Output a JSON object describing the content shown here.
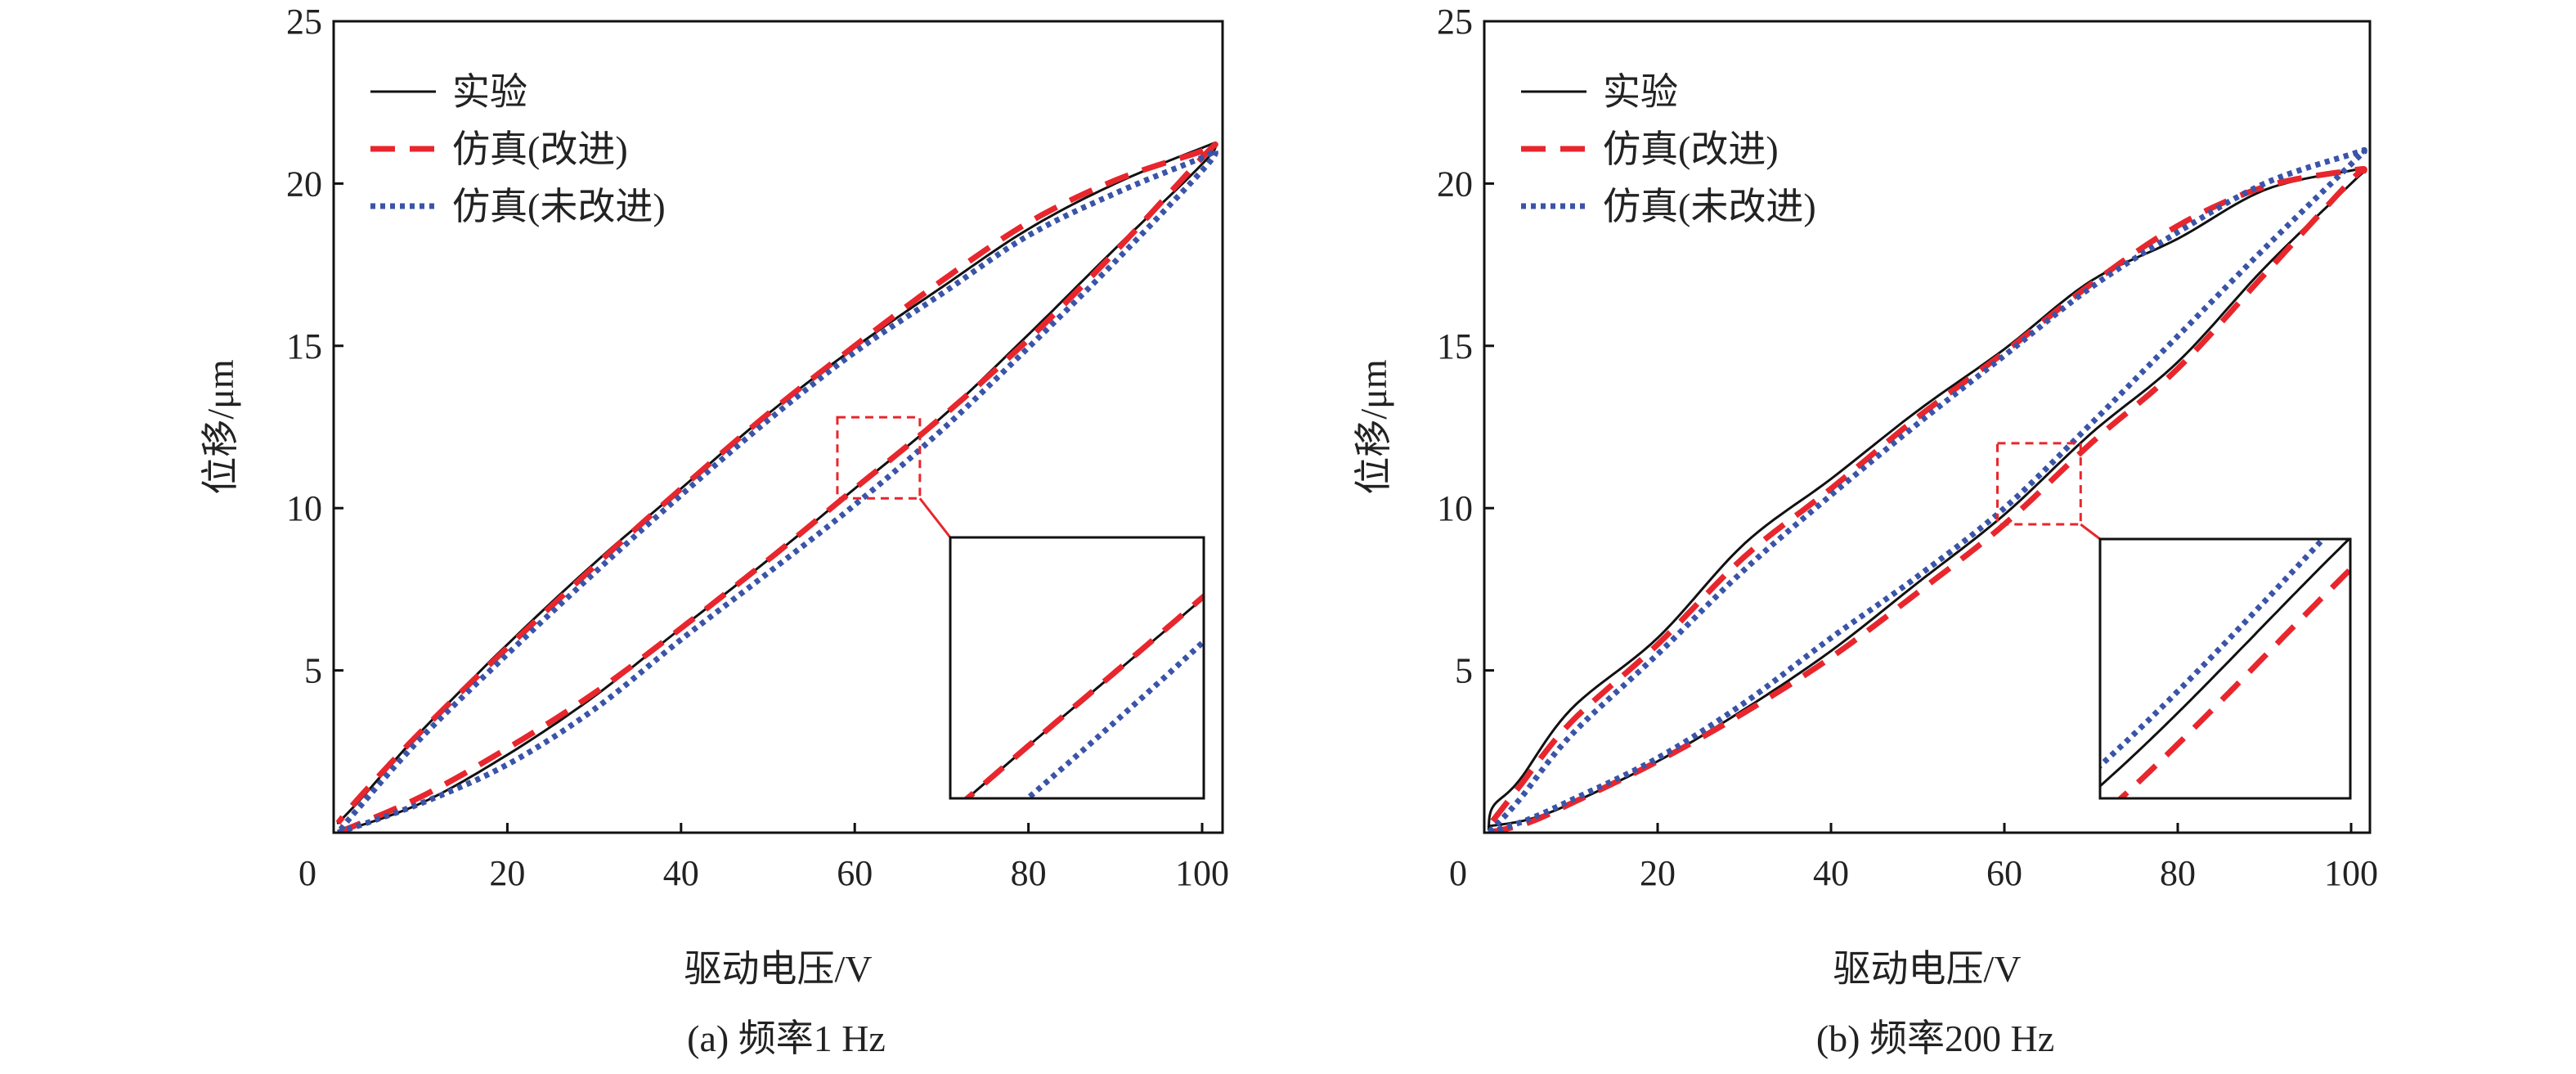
{
  "chart_data": [
    {
      "type": "line",
      "caption": "(a) 频率1 Hz",
      "xlabel": "驱动电压/V",
      "ylabel": "位移/μm",
      "xlim": [
        0,
        102.5
      ],
      "ylim": [
        0,
        25
      ],
      "xticks": [
        0,
        20,
        40,
        60,
        80,
        100
      ],
      "yticks": [
        5,
        10,
        15,
        20,
        25
      ],
      "xtick_labels": [
        "0",
        "20",
        "40",
        "60",
        "80",
        "100"
      ],
      "ytick_labels": [
        "5",
        "10",
        "15",
        "20",
        "25"
      ],
      "grid": false,
      "legend_position": "top-left",
      "inset": {
        "xrange": [
          58,
          67.5
        ],
        "yrange": [
          10.3,
          12.8
        ],
        "position": "bottom-right"
      },
      "series": [
        {
          "name": "实验",
          "style": "solid",
          "color": "#111111",
          "x": [
            0.5,
            10,
            20,
            30,
            40,
            50,
            60,
            70,
            80,
            90,
            100,
            101.5,
            100,
            90,
            80,
            70,
            60,
            50,
            40,
            30,
            20,
            10,
            3,
            0.5
          ],
          "y": [
            0,
            0.9,
            2.4,
            4.2,
            6.3,
            8.4,
            10.6,
            12.8,
            15.35,
            18.0,
            20.6,
            21.2,
            21.1,
            20.0,
            18.6,
            16.8,
            14.95,
            12.9,
            10.6,
            8.3,
            5.8,
            3.1,
            1.0,
            0.3
          ]
        },
        {
          "name": "仿真(改进)",
          "style": "dashed",
          "color": "#e8262d",
          "x": [
            0.5,
            10,
            20,
            30,
            40,
            50,
            60,
            70,
            80,
            90,
            100,
            101.5,
            100,
            90,
            80,
            70,
            60,
            50,
            40,
            30,
            20,
            10,
            3,
            0.5
          ],
          "y": [
            0,
            1.1,
            2.6,
            4.3,
            6.3,
            8.4,
            10.6,
            12.8,
            15.2,
            17.9,
            20.8,
            21.2,
            21.0,
            20.1,
            18.8,
            17.0,
            15.0,
            12.9,
            10.6,
            8.2,
            5.7,
            3.1,
            1.1,
            0.3
          ]
        },
        {
          "name": "仿真(未改进)",
          "style": "dotted",
          "color": "#3a54a8",
          "x": [
            0.5,
            10,
            20,
            30,
            40,
            50,
            60,
            70,
            80,
            90,
            100,
            101.5,
            100,
            90,
            80,
            70,
            60,
            50,
            40,
            30,
            20,
            10,
            3,
            0.5
          ],
          "y": [
            0,
            0.9,
            2.1,
            3.8,
            5.95,
            8.0,
            10.1,
            12.4,
            14.95,
            17.6,
            20.4,
            21.0,
            20.8,
            19.7,
            18.4,
            16.6,
            14.8,
            12.7,
            10.4,
            8.0,
            5.5,
            2.9,
            0.8,
            0
          ]
        }
      ]
    },
    {
      "type": "line",
      "caption": "(b) 频率200 Hz",
      "xlabel": "驱动电压/V",
      "ylabel": "位移/μm",
      "xlim": [
        0,
        102.5
      ],
      "ylim": [
        0,
        25
      ],
      "xticks": [
        0,
        20,
        40,
        60,
        80,
        100
      ],
      "yticks": [
        5,
        10,
        15,
        20,
        25
      ],
      "xtick_labels": [
        "0",
        "20",
        "40",
        "60",
        "80",
        "100"
      ],
      "ytick_labels": [
        "5",
        "10",
        "15",
        "20",
        "25"
      ],
      "grid": false,
      "legend_position": "top-left",
      "inset": {
        "xrange": [
          59.2,
          68.8
        ],
        "yrange": [
          9.5,
          12.0
        ],
        "position": "bottom-right"
      },
      "series": [
        {
          "name": "实验",
          "style": "solid",
          "color": "#111111",
          "x": [
            0.5,
            5,
            10,
            20,
            30,
            40,
            50,
            60,
            70,
            80,
            90,
            100,
            101.5,
            100,
            90,
            80,
            70,
            60,
            50,
            40,
            30,
            20,
            10,
            4,
            1,
            0.5
          ],
          "y": [
            0.2,
            0.4,
            0.9,
            2.2,
            3.8,
            5.6,
            7.7,
            9.8,
            12.3,
            14.5,
            17.4,
            20.0,
            20.4,
            20.4,
            19.8,
            18.3,
            17.0,
            14.9,
            13.0,
            10.9,
            8.9,
            6.0,
            3.8,
            1.6,
            0.8,
            0.1
          ]
        },
        {
          "name": "仿真(改进)",
          "style": "dashed",
          "color": "#e8262d",
          "x": [
            0.5,
            5,
            10,
            20,
            30,
            40,
            50,
            60,
            70,
            80,
            90,
            100,
            101.5,
            100,
            90,
            80,
            70,
            60,
            50,
            40,
            30,
            20,
            10,
            4,
            0.5
          ],
          "y": [
            0,
            0.3,
            0.9,
            2.2,
            3.7,
            5.4,
            7.4,
            9.5,
            12.0,
            14.3,
            17.2,
            20.1,
            20.4,
            20.4,
            19.9,
            18.7,
            16.9,
            14.8,
            12.8,
            10.6,
            8.5,
            5.8,
            3.4,
            1.4,
            0.2
          ]
        },
        {
          "name": "仿真(未改进)",
          "style": "dotted",
          "color": "#3a54a8",
          "x": [
            0.5,
            5,
            10,
            20,
            30,
            40,
            50,
            60,
            70,
            80,
            90,
            100,
            101.5,
            100,
            90,
            80,
            70,
            60,
            50,
            40,
            30,
            20,
            10,
            4,
            0.5
          ],
          "y": [
            0,
            0.4,
            1.0,
            2.3,
            4.0,
            6.0,
            7.9,
            10.0,
            12.6,
            15.3,
            18.0,
            20.6,
            21.0,
            20.9,
            20.0,
            18.5,
            16.8,
            14.7,
            12.6,
            10.4,
            8.1,
            5.5,
            3.0,
            1.0,
            0
          ]
        }
      ]
    }
  ]
}
